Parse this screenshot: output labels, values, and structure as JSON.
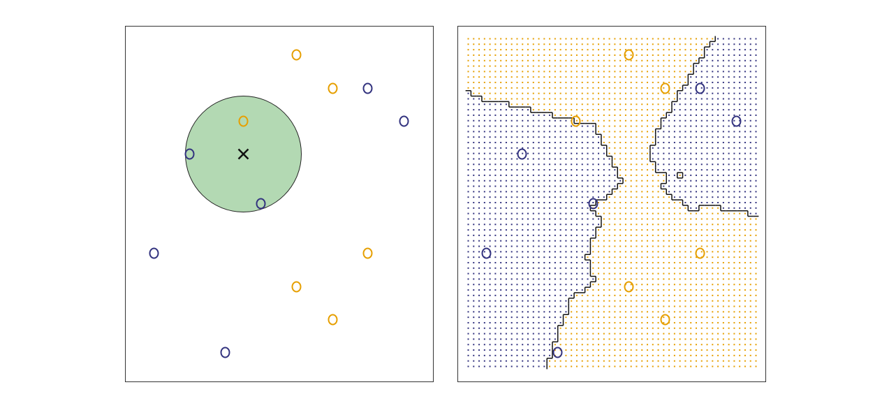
{
  "chart_data": [
    {
      "type": "scatter",
      "xlim": [
        0,
        441
      ],
      "ylim": [
        0,
        509
      ],
      "query": {
        "x": 169,
        "y": 326
      },
      "series": [
        {
          "color": "#e69f00",
          "x": [
            245,
            297,
            169,
            347,
            245,
            297
          ],
          "values": [
            468,
            420,
            373,
            184,
            136,
            89
          ]
        },
        {
          "color": "#33337f",
          "x": [
            347,
            399,
            92,
            194,
            41,
            143
          ],
          "values": [
            420,
            373,
            326,
            255,
            184,
            42
          ]
        }
      ]
    },
    {
      "type": "knn",
      "xlim": [
        0,
        441
      ],
      "ylim": [
        0,
        509
      ],
      "series": [
        {
          "color": "#e69f00",
          "x": [
            245,
            297,
            169,
            347,
            245,
            297
          ],
          "values": [
            468,
            420,
            373,
            184,
            136,
            89
          ]
        },
        {
          "color": "#33337f",
          "x": [
            347,
            399,
            92,
            194,
            41,
            143
          ],
          "values": [
            420,
            373,
            326,
            255,
            184,
            42
          ]
        }
      ]
    }
  ]
}
